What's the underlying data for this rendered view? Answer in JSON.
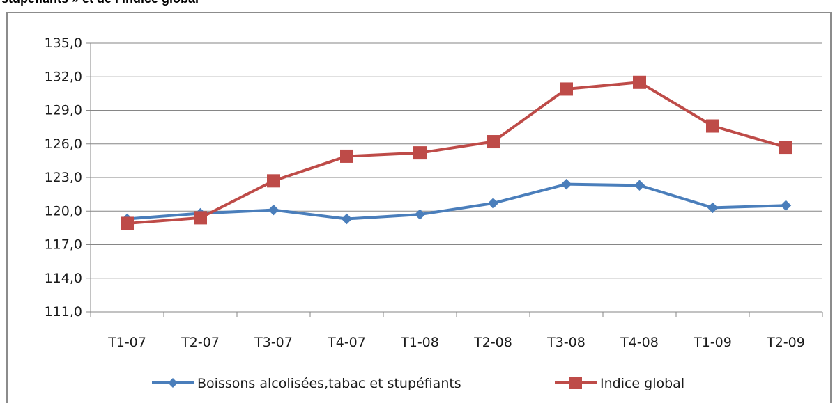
{
  "title_fragment": "stupéfiants » et de l’indice global",
  "chart_data": {
    "type": "line",
    "title": "",
    "xlabel": "",
    "ylabel": "",
    "categories": [
      "T1-07",
      "T2-07",
      "T3-07",
      "T4-07",
      "T1-08",
      "T2-08",
      "T3-08",
      "T4-08",
      "T1-09",
      "T2-09"
    ],
    "ylim": [
      111,
      135
    ],
    "yticks": [
      "111,0",
      "114,0",
      "117,0",
      "120,0",
      "123,0",
      "126,0",
      "129,0",
      "132,0",
      "135,0"
    ],
    "grid": true,
    "legend_position": "bottom",
    "series": [
      {
        "name": "Boissons alcolisées,tabac et stupéfiants",
        "color": "#4a7ebb",
        "marker": "diamond",
        "values": [
          119.3,
          119.8,
          120.1,
          119.3,
          119.7,
          120.7,
          122.4,
          122.3,
          120.3,
          120.5
        ]
      },
      {
        "name": "Indice global",
        "color": "#be4b48",
        "marker": "square",
        "values": [
          118.9,
          119.4,
          122.7,
          124.9,
          125.2,
          126.2,
          130.9,
          131.5,
          127.6,
          125.7
        ]
      }
    ]
  }
}
